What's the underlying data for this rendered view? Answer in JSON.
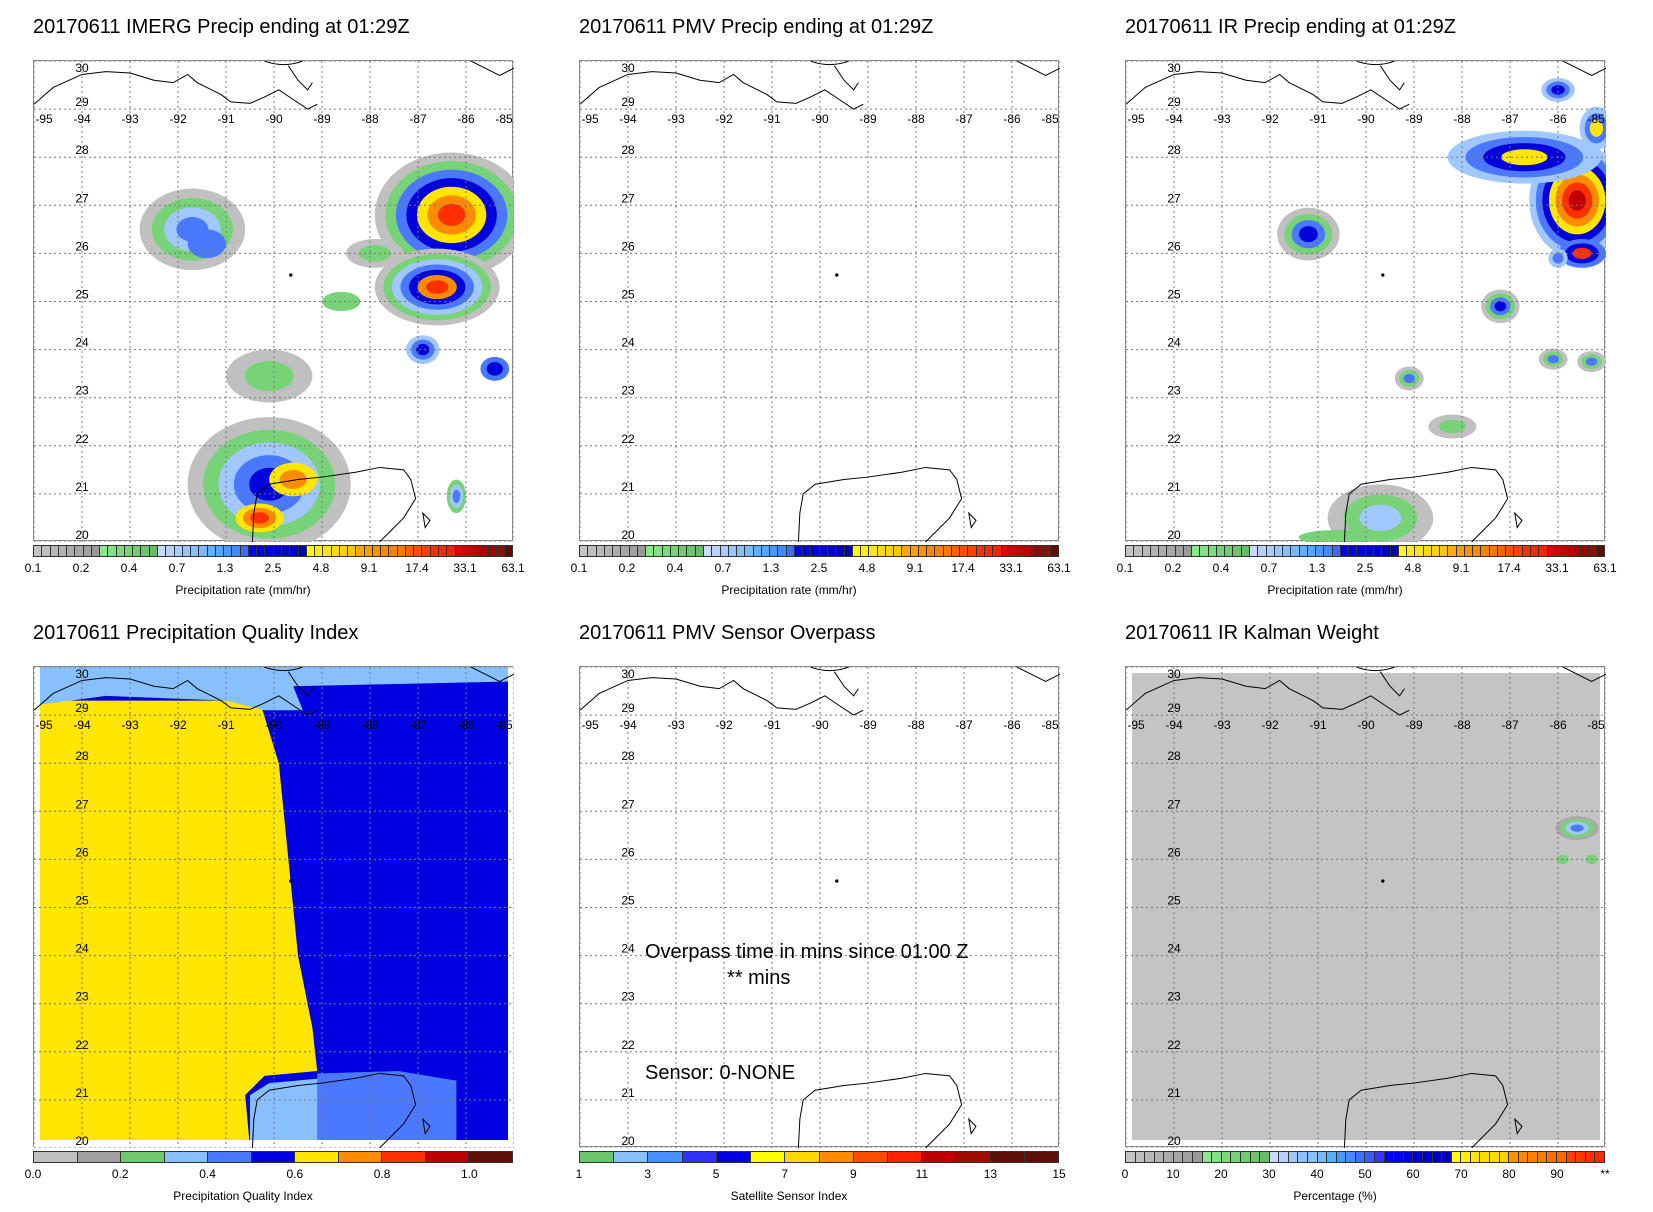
{
  "panels": [
    {
      "id": "imerg",
      "title": "20170611 IMERG Precip ending at 01:29Z",
      "colorbar": "precip",
      "axis_title": "Precipitation rate (mm/hr)"
    },
    {
      "id": "pmv",
      "title": "20170611 PMV Precip ending at 01:29Z",
      "colorbar": "precip",
      "axis_title": "Precipitation rate (mm/hr)"
    },
    {
      "id": "ir",
      "title": "20170611 IR Precip ending at 01:29Z",
      "colorbar": "precip",
      "axis_title": "Precipitation rate (mm/hr)"
    },
    {
      "id": "pqi",
      "title": "20170611 Precipitation Quality Index",
      "colorbar": "pqi",
      "axis_title": "Precipitation Quality Index"
    },
    {
      "id": "overpass",
      "title": "20170611 PMV Sensor Overpass",
      "colorbar": "sensor",
      "axis_title": "Satellite Sensor Index"
    },
    {
      "id": "kalman",
      "title": "20170611 IR Kalman Weight",
      "colorbar": "pct",
      "axis_title": "Percentage (%)"
    }
  ],
  "overpass_text": {
    "line1": "Overpass time in mins since 01:00 Z",
    "line2": "** mins",
    "sensor": "Sensor:   0-NONE"
  },
  "map_axes": {
    "lon_ticks": [
      "-95",
      "-94",
      "-93",
      "-92",
      "-91",
      "-90",
      "-89",
      "-88",
      "-87",
      "-86",
      "-85"
    ],
    "lat_ticks": [
      "20",
      "21",
      "22",
      "23",
      "24",
      "25",
      "26",
      "27",
      "28",
      "29",
      "30"
    ]
  },
  "colorbars": {
    "precip": {
      "labels": [
        "0.1",
        "0.2",
        "0.4",
        "0.7",
        "1.3",
        "2.5",
        "4.8",
        "9.1",
        "17.4",
        "33.1",
        "63.1"
      ],
      "colors": [
        "#c4c4c4",
        "#bebebe",
        "#b8b8b8",
        "#b2b2b2",
        "#acacac",
        "#a6a6a6",
        "#a0a0a0",
        "#999999",
        "#8ce68c",
        "#84e084",
        "#7cda7c",
        "#74d474",
        "#70cc70",
        "#6cc46c",
        "#68bc68",
        "#ccd8ff",
        "#b8d0ff",
        "#a8ccff",
        "#98c4ff",
        "#88c0ff",
        "#78b8ff",
        "#60b0ff",
        "#50a8ff",
        "#4898ff",
        "#4488ff",
        "#3c6cff",
        "#0000ff",
        "#0000f0",
        "#0000e4",
        "#0000d8",
        "#0000cc",
        "#0000c0",
        "#0000b4",
        "#ffff00",
        "#fff000",
        "#ffe600",
        "#ffdc00",
        "#ffd200",
        "#ffc800",
        "#ffa800",
        "#ff9c00",
        "#ff9000",
        "#ff8800",
        "#ff8000",
        "#ff7800",
        "#ff6000",
        "#ff5000",
        "#ff4000",
        "#ff3000",
        "#ff2800",
        "#ff2000",
        "#e00000",
        "#d00000",
        "#c00000",
        "#b00000",
        "#a00000",
        "#901000",
        "#600c00"
      ]
    },
    "pqi": {
      "labels": [
        "0.0",
        "0.2",
        "0.4",
        "0.6",
        "0.8",
        "1.0"
      ],
      "colors": [
        "#c0c0c0",
        "#a0a0a0",
        "#70c870",
        "#88c0ff",
        "#4a78ff",
        "#0000e0",
        "#ffe600",
        "#ff8c00",
        "#ff3000",
        "#c00000",
        "#601008"
      ]
    },
    "sensor": {
      "labels": [
        "1",
        "3",
        "5",
        "7",
        "9",
        "11",
        "13",
        "15"
      ],
      "colors": [
        "#6cc46c",
        "#88c0ff",
        "#4890ff",
        "#3030ff",
        "#0000e0",
        "#ffff00",
        "#ffd800",
        "#ff8c00",
        "#ff4c00",
        "#ff2000",
        "#c00000",
        "#a00c00",
        "#601008",
        "#601008"
      ]
    },
    "pct": {
      "labels": [
        "0",
        "10",
        "20",
        "30",
        "40",
        "50",
        "60",
        "70",
        "80",
        "90",
        "**"
      ],
      "colors": [
        "#c4c4c4",
        "#bebebe",
        "#b8b8b8",
        "#b2b2b2",
        "#acacac",
        "#a6a6a6",
        "#a0a0a0",
        "#999999",
        "#8ce68c",
        "#84e084",
        "#7cda7c",
        "#74d474",
        "#70cc70",
        "#6cc46c",
        "#68bc68",
        "#ccd8ff",
        "#b8d0ff",
        "#a0c8ff",
        "#90c0ff",
        "#88c0ff",
        "#78b8ff",
        "#50b0ff",
        "#4a98ff",
        "#4a88ff",
        "#4070ff",
        "#3c5cff",
        "#3434ff",
        "#0000ff",
        "#0000f0",
        "#0000e4",
        "#0000d8",
        "#0000cc",
        "#0000c0",
        "#0000b4",
        "#ffff00",
        "#fff000",
        "#ffe600",
        "#ffdc00",
        "#ffd800",
        "#ffd000",
        "#ff9000",
        "#ff8800",
        "#ff8000",
        "#ff7c00",
        "#ff7000",
        "#ff6800",
        "#ff4000",
        "#ff3800",
        "#ff3000",
        "#ff2800"
      ]
    }
  }
}
